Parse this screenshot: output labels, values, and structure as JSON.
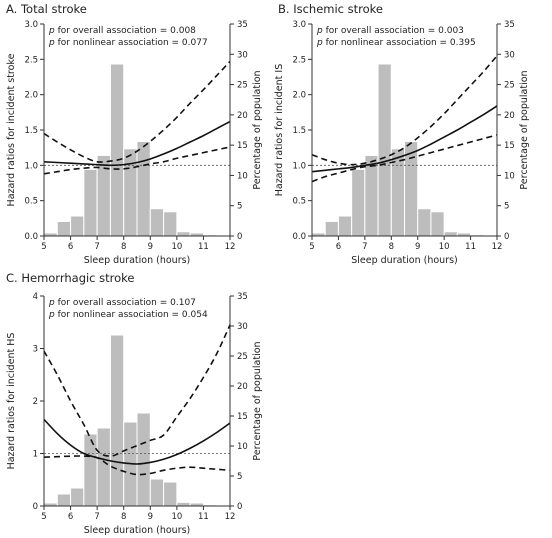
{
  "colors": {
    "bars": "#bdbdbd",
    "bar_edge": "#ffffff",
    "curve": "#111111",
    "ref_line": "#555555",
    "axis": "#333333"
  },
  "chart_data": [
    {
      "type": "bar",
      "title": "A. Total stroke",
      "annotations": [
        {
          "p": "p",
          "text": " for overall association = 0.008"
        },
        {
          "p": "p",
          "text": " for nonlinear association = 0.077"
        }
      ],
      "xlabel": "Sleep duration (hours)",
      "ylabel": "Hazard ratios for incident stroke",
      "y2label": "Percentage of population",
      "xlim": [
        5,
        12
      ],
      "xticks": [
        "5",
        "6",
        "7",
        "8",
        "9",
        "10",
        "11",
        "12"
      ],
      "ylim": [
        0,
        3.0
      ],
      "yticks": [
        "0.0",
        "0.5",
        "1.0",
        "1.5",
        "2.0",
        "2.5",
        "3.0"
      ],
      "y2lim": [
        0,
        35
      ],
      "y2ticks": [
        "0",
        "5",
        "10",
        "15",
        "20",
        "25",
        "30",
        "35"
      ],
      "reference_hr": 1.0,
      "histogram": {
        "bin_starts": [
          5.0,
          5.5,
          6.0,
          6.5,
          7.0,
          7.5,
          8.0,
          8.5,
          9.0,
          9.5,
          10.0,
          10.5,
          11.0,
          11.5
        ],
        "bin_width": 0.5,
        "percent": [
          0.5,
          2.4,
          3.3,
          11.0,
          13.3,
          28.4,
          14.4,
          15.6,
          4.5,
          4.0,
          0.7,
          0.5,
          0.2,
          0.1
        ]
      },
      "spline": {
        "x": [
          5.0,
          5.5,
          6.0,
          6.5,
          7.0,
          7.5,
          8.0,
          8.5,
          9.0,
          9.5,
          10.0,
          10.5,
          11.0,
          11.5,
          12.0
        ],
        "hr": [
          1.05,
          1.04,
          1.03,
          1.02,
          1.01,
          1.0,
          1.01,
          1.04,
          1.09,
          1.16,
          1.24,
          1.33,
          1.42,
          1.52,
          1.62
        ],
        "lower": [
          0.88,
          0.91,
          0.94,
          0.96,
          0.97,
          0.95,
          0.95,
          0.98,
          1.02,
          1.05,
          1.1,
          1.14,
          1.18,
          1.22,
          1.26
        ],
        "upper": [
          1.45,
          1.33,
          1.22,
          1.12,
          1.05,
          1.06,
          1.1,
          1.2,
          1.34,
          1.5,
          1.68,
          1.88,
          2.07,
          2.27,
          2.47
        ]
      }
    },
    {
      "type": "bar",
      "title": "B. Ischemic stroke",
      "annotations": [
        {
          "p": "p",
          "text": " for overall association = 0.003"
        },
        {
          "p": "p",
          "text": " for nonlinear association = 0.395"
        }
      ],
      "xlabel": "Sleep duration (hours)",
      "ylabel": "Hazard ratios for incident IS",
      "y2label": "Percentage of population",
      "xlim": [
        5,
        12
      ],
      "xticks": [
        "5",
        "6",
        "7",
        "8",
        "9",
        "10",
        "11",
        "12"
      ],
      "ylim": [
        0,
        3.0
      ],
      "yticks": [
        "0.0",
        "0.5",
        "1.0",
        "1.5",
        "2.0",
        "2.5",
        "3.0"
      ],
      "y2lim": [
        0,
        35
      ],
      "y2ticks": [
        "0",
        "5",
        "10",
        "15",
        "20",
        "25",
        "30",
        "35"
      ],
      "reference_hr": 1.0,
      "histogram": {
        "bin_starts": [
          5.0,
          5.5,
          6.0,
          6.5,
          7.0,
          7.5,
          8.0,
          8.5,
          9.0,
          9.5,
          10.0,
          10.5,
          11.0,
          11.5
        ],
        "bin_width": 0.5,
        "percent": [
          0.5,
          2.4,
          3.3,
          11.0,
          13.3,
          28.4,
          14.4,
          15.6,
          4.5,
          4.0,
          0.7,
          0.5,
          0.2,
          0.1
        ]
      },
      "spline": {
        "x": [
          5.0,
          5.5,
          6.0,
          6.5,
          7.0,
          7.5,
          8.0,
          8.5,
          9.0,
          9.5,
          10.0,
          10.5,
          11.0,
          11.5,
          12.0
        ],
        "hr": [
          0.91,
          0.93,
          0.95,
          0.97,
          1.0,
          1.03,
          1.08,
          1.14,
          1.21,
          1.3,
          1.4,
          1.5,
          1.61,
          1.72,
          1.84
        ],
        "lower": [
          0.77,
          0.84,
          0.89,
          0.94,
          0.98,
          1.0,
          1.04,
          1.08,
          1.13,
          1.18,
          1.23,
          1.28,
          1.33,
          1.38,
          1.43
        ],
        "upper": [
          1.15,
          1.08,
          1.03,
          1.01,
          1.03,
          1.08,
          1.15,
          1.25,
          1.39,
          1.55,
          1.73,
          1.93,
          2.13,
          2.33,
          2.55
        ]
      }
    },
    {
      "type": "bar",
      "title": "C. Hemorrhagic stroke",
      "annotations": [
        {
          "p": "p",
          "text": " for overall association = 0.107"
        },
        {
          "p": "p",
          "text": " for nonlinear association = 0.054"
        }
      ],
      "xlabel": "Sleep duration (hours)",
      "ylabel": "Hazard ratios for incident HS",
      "y2label": "Percentage of population",
      "xlim": [
        5,
        12
      ],
      "xticks": [
        "5",
        "6",
        "7",
        "8",
        "9",
        "10",
        "11",
        "12"
      ],
      "ylim": [
        0,
        4
      ],
      "yticks": [
        "0",
        "1",
        "2",
        "3",
        "4"
      ],
      "y2lim": [
        0,
        35
      ],
      "y2ticks": [
        "0",
        "5",
        "10",
        "15",
        "20",
        "25",
        "30",
        "35"
      ],
      "reference_hr": 1.0,
      "histogram": {
        "bin_starts": [
          5.0,
          5.5,
          6.0,
          6.5,
          7.0,
          7.5,
          8.0,
          8.5,
          9.0,
          9.5,
          10.0,
          10.5,
          11.0,
          11.5
        ],
        "bin_width": 0.5,
        "percent": [
          0.5,
          2.0,
          3.0,
          12.0,
          13.0,
          28.5,
          14.0,
          15.5,
          4.5,
          4.0,
          0.6,
          0.5,
          0.2,
          0.1
        ]
      },
      "spline": {
        "x": [
          5.0,
          5.5,
          6.0,
          6.5,
          7.0,
          7.5,
          8.0,
          8.5,
          9.0,
          9.5,
          10.0,
          10.5,
          11.0,
          11.5,
          12.0
        ],
        "hr": [
          1.65,
          1.38,
          1.16,
          1.0,
          0.92,
          0.86,
          0.82,
          0.8,
          0.83,
          0.89,
          0.98,
          1.1,
          1.24,
          1.4,
          1.58
        ],
        "lower": [
          0.93,
          0.94,
          0.95,
          0.95,
          0.92,
          0.76,
          0.66,
          0.6,
          0.62,
          0.68,
          0.72,
          0.74,
          0.72,
          0.7,
          0.68
        ],
        "upper": [
          2.95,
          2.5,
          2.0,
          1.55,
          1.06,
          0.95,
          1.05,
          1.15,
          1.25,
          1.35,
          1.7,
          2.05,
          2.45,
          2.9,
          3.45
        ]
      }
    }
  ]
}
